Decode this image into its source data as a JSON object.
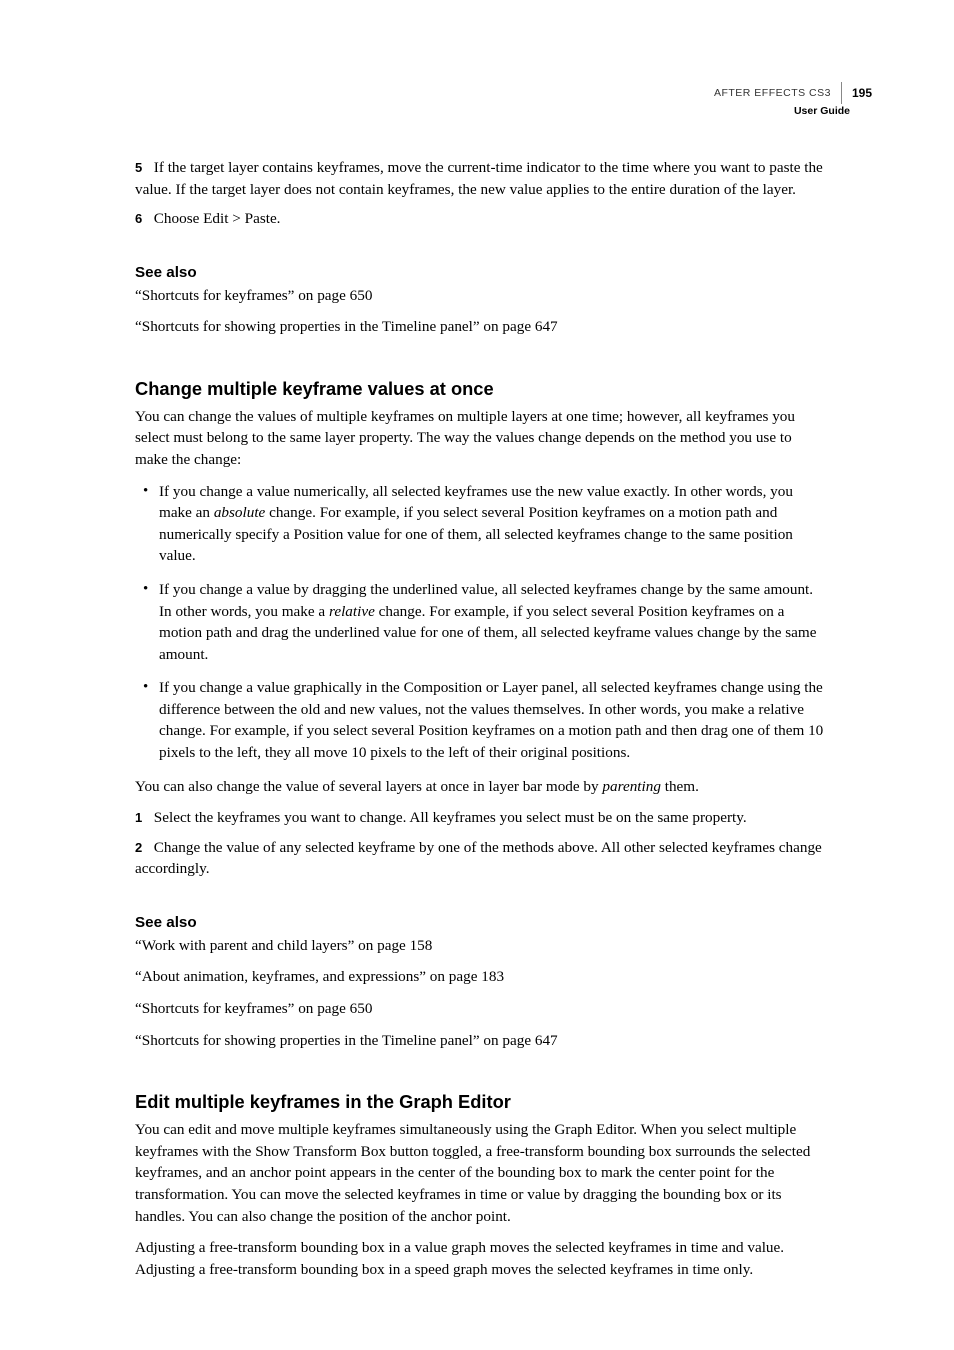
{
  "header": {
    "product": "AFTER EFFECTS CS3",
    "subtitle": "User Guide",
    "pageNumber": "195"
  },
  "intro": {
    "step5": "If the target layer contains keyframes, move the current-time indicator to the time where you want to paste the value. If the target layer does not contain keyframes, the new value applies to the entire duration of the layer.",
    "step5Num": "5",
    "step6": "Choose Edit > Paste.",
    "step6Num": "6"
  },
  "seeAlso1": {
    "heading": "See also",
    "ref1": "“Shortcuts for keyframes” on page 650",
    "ref2": "“Shortcuts for showing properties in the Timeline panel” on page 647"
  },
  "section1": {
    "heading": "Change multiple keyframe values at once",
    "intro": "You can change the values of multiple keyframes on multiple layers at one time; however, all keyframes you select must belong to the same layer property. The way the values change depends on the method you use to make the change:",
    "bullet1a": "If you change a value numerically, all selected keyframes use the new value exactly. In other words, you make an ",
    "bullet1b_em": "absolute",
    "bullet1c": " change. For example, if you select several Position keyframes on a motion path and numerically specify a Position value for one of them, all selected keyframes change to the same position value.",
    "bullet2a": "If you change a value by dragging the underlined value, all selected keyframes change by the same amount. In other words, you make a ",
    "bullet2b_em": "relative",
    "bullet2c": " change. For example, if you select several Position keyframes on a motion path and drag the underlined value for one of them, all selected keyframe values change by the same amount.",
    "bullet3": "If you change a value graphically in the Composition or Layer panel, all selected keyframes change using the difference between the old and new values, not the values themselves. In other words, you make a relative change. For example, if you select several Position keyframes on a motion path and then drag one of them 10 pixels to the left, they all move 10 pixels to the left of their original positions.",
    "para2a": "You can also change the value of several layers at once in layer bar mode by ",
    "para2b_em": "parenting",
    "para2c": " them.",
    "step1Num": "1",
    "step1": "Select the keyframes you want to change. All keyframes you select must be on the same property.",
    "step2Num": "2",
    "step2": "Change the value of any selected keyframe by one of the methods above. All other selected keyframes change accordingly."
  },
  "seeAlso2": {
    "heading": "See also",
    "ref1": "“Work with parent and child layers” on page 158",
    "ref2": "“About animation, keyframes, and expressions” on page 183",
    "ref3": "“Shortcuts for keyframes” on page 650",
    "ref4": "“Shortcuts for showing properties in the Timeline panel” on page 647"
  },
  "section2": {
    "heading": "Edit multiple keyframes in the Graph Editor",
    "para1": "You can edit and move multiple keyframes simultaneously using the Graph Editor. When you select multiple keyframes with the Show Transform Box button toggled, a free-transform bounding box surrounds the selected keyframes, and an anchor point appears in the center of the bounding box to mark the center point for the transformation. You can move the selected keyframes in time or value by dragging the bounding box or its handles. You can also change the position of the anchor point.",
    "para2": "Adjusting a free-transform bounding box in a value graph moves the selected keyframes in time and value. Adjusting a free-transform bounding box in a speed graph moves the selected keyframes in time only."
  }
}
